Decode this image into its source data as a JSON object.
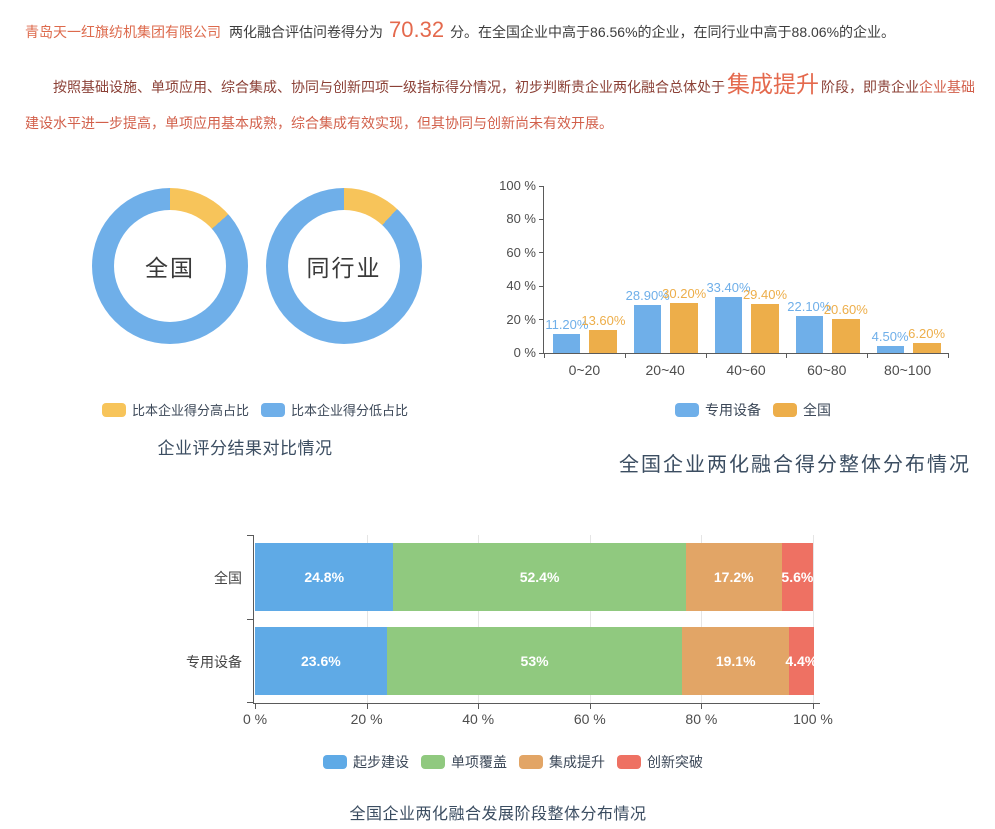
{
  "report": {
    "company": "青岛天一红旗纺机集团有限公司",
    "intro_mid": "两化融合评估问卷得分为",
    "score": "70.32",
    "intro_tail": "分。在全国企业中高于86.56%的企业，在同行业中高于88.06%的企业。",
    "para2_lead": "按照基础设施、单项应用、综合集成、协同与创新四项一级指标得分情况，初步判断贵企业两化融合总体处于",
    "para2_stage": "集成提升",
    "para2_mid": "阶段，即贵企业",
    "para2_tail": "企业基础建设水平进一步提高，单项应用基本成熟，综合集成有效实现，但其协同与创新尚未有效开展。"
  },
  "colors": {
    "blue": "#6FAFE9",
    "yellow": "#F7C45A",
    "bar_orange": "#EDAE4A",
    "stack_blue": "#5FAAE6",
    "stack_green": "#90C97F",
    "stack_orange": "#E2A566",
    "stack_red": "#EE7163",
    "title": "#3B4D61",
    "accent_text": "#E4694D"
  },
  "chart_data": [
    {
      "type": "pie",
      "variant": "donut-pair",
      "title": "企业评分结果对比情况",
      "legend": [
        {
          "name": "比本企业得分高占比",
          "color": "#F7C45A"
        },
        {
          "name": "比本企业得分低占比",
          "color": "#6FAFE9"
        }
      ],
      "pies": [
        {
          "label": "全国",
          "slices": [
            {
              "name": "比本企业得分高占比",
              "value": 13.44,
              "color": "#F7C45A"
            },
            {
              "name": "比本企业得分低占比",
              "value": 86.56,
              "color": "#6FAFE9"
            }
          ]
        },
        {
          "label": "同行业",
          "slices": [
            {
              "name": "比本企业得分高占比",
              "value": 11.94,
              "color": "#F7C45A"
            },
            {
              "name": "比本企业得分低占比",
              "value": 88.06,
              "color": "#6FAFE9"
            }
          ]
        }
      ]
    },
    {
      "type": "bar",
      "title": "全国企业两化融合得分整体分布情况",
      "categories": [
        "0~20",
        "20~40",
        "40~60",
        "60~80",
        "80~100"
      ],
      "series": [
        {
          "name": "专用设备",
          "color": "#6FAFE9",
          "values": [
            11.2,
            28.9,
            33.4,
            22.1,
            4.5
          ],
          "labels": [
            "11.20%",
            "28.90%",
            "33.40%",
            "22.10%",
            "4.50%"
          ]
        },
        {
          "name": "全国",
          "color": "#EDAE4A",
          "values": [
            13.6,
            30.2,
            29.4,
            20.6,
            6.2
          ],
          "labels": [
            "13.60%",
            "30.20%",
            "29.40%",
            "20.60%",
            "6.20%"
          ]
        }
      ],
      "y_ticks": [
        "0 %",
        "20 %",
        "40 %",
        "60 %",
        "80 %",
        "100 %"
      ],
      "ylim": [
        0,
        100
      ],
      "grid": false,
      "legend_position": "bottom"
    },
    {
      "type": "bar",
      "variant": "stacked-horizontal",
      "title": "全国企业两化融合发展阶段整体分布情况",
      "categories": [
        "全国",
        "专用设备"
      ],
      "series": [
        {
          "name": "起步建设",
          "color": "#5FAAE6",
          "values": [
            24.8,
            23.6
          ],
          "labels": [
            "24.8%",
            "23.6%"
          ]
        },
        {
          "name": "单项覆盖",
          "color": "#90C97F",
          "values": [
            52.4,
            53.0
          ],
          "labels": [
            "52.4%",
            "53%"
          ]
        },
        {
          "name": "集成提升",
          "color": "#E2A566",
          "values": [
            17.2,
            19.1
          ],
          "labels": [
            "17.2%",
            "19.1%"
          ]
        },
        {
          "name": "创新突破",
          "color": "#EE7163",
          "values": [
            5.6,
            4.4
          ],
          "labels": [
            "5.6%",
            "4.4%"
          ]
        }
      ],
      "x_ticks": [
        "0 %",
        "20 %",
        "40 %",
        "60 %",
        "80 %",
        "100 %"
      ],
      "xlim": [
        0,
        100
      ],
      "grid": true,
      "legend_position": "bottom"
    }
  ]
}
